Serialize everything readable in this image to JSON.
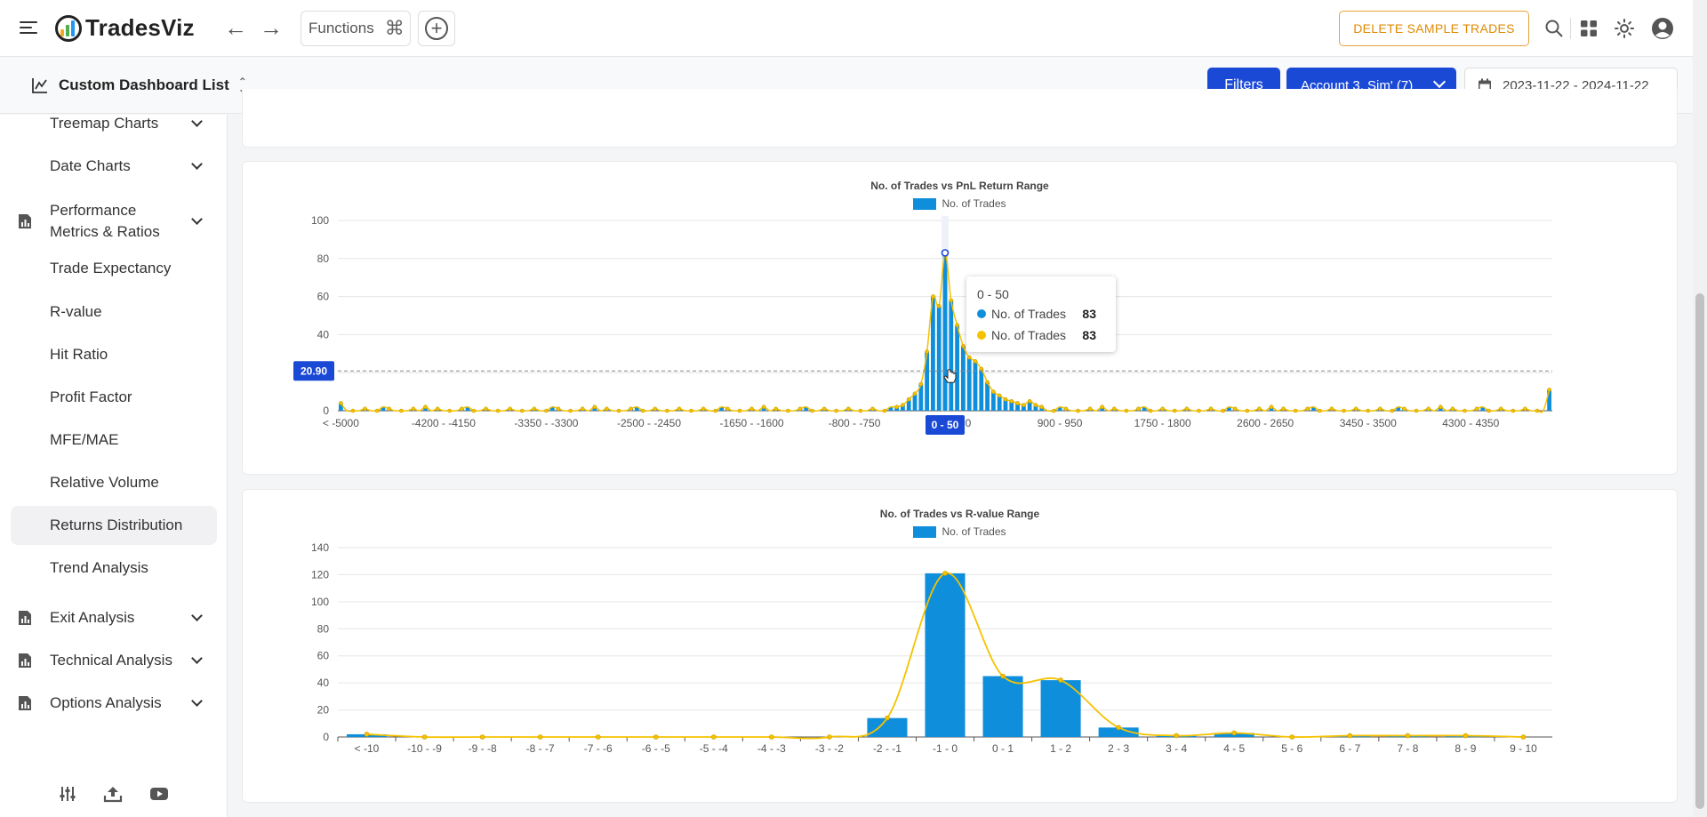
{
  "app": {
    "name": "TradesViz"
  },
  "topbar": {
    "functions_label": "Functions",
    "delete_sample_label": "DELETE SAMPLE TRADES"
  },
  "subbar": {
    "dashboard_title": "Custom Dashboard List",
    "filters_label": "Filters",
    "account_label": "Account 3, Sim' (7)",
    "date_range": "2023-11-22 - 2024-11-22"
  },
  "sidebar": {
    "items": [
      {
        "label": "Treemap Charts",
        "expandable": true,
        "icon": false
      },
      {
        "label": "Date Charts",
        "expandable": true,
        "icon": false
      },
      {
        "label": "Performance Metrics & Ratios",
        "expandable": true,
        "icon": true
      },
      {
        "label": "Trade Expectancy",
        "expandable": false,
        "icon": false
      },
      {
        "label": "R-value",
        "expandable": false,
        "icon": false
      },
      {
        "label": "Hit Ratio",
        "expandable": false,
        "icon": false
      },
      {
        "label": "Profit Factor",
        "expandable": false,
        "icon": false
      },
      {
        "label": "MFE/MAE",
        "expandable": false,
        "icon": false
      },
      {
        "label": "Relative Volume",
        "expandable": false,
        "icon": false
      },
      {
        "label": "Returns Distribution",
        "expandable": false,
        "icon": false,
        "active": true
      },
      {
        "label": "Trend Analysis",
        "expandable": false,
        "icon": false
      },
      {
        "label": "Exit Analysis",
        "expandable": true,
        "icon": true
      },
      {
        "label": "Technical Analysis",
        "expandable": true,
        "icon": true
      },
      {
        "label": "Options Analysis",
        "expandable": true,
        "icon": true
      }
    ]
  },
  "colors": {
    "bar": "#0f8fdb",
    "line": "#f5c200",
    "brand": "#1a49d6",
    "warning": "#e08a00"
  },
  "chart_data": [
    {
      "type": "bar",
      "title": "No. of Trades vs PnL Return Range",
      "legend": "No. of Trades",
      "ylim": [
        0,
        100
      ],
      "yticks": [
        0,
        20,
        40,
        60,
        80,
        100
      ],
      "tick_labels": [
        "< -5000",
        "-4200 - -4150",
        "-3350 - -3300",
        "-2500 - -2450",
        "-1650 - -1600",
        "-800 - -750",
        "0 - 50",
        "900 - 950",
        "1750 - 1800",
        "2600 - 2650",
        "3450 - 3500",
        "4300 - 4350"
      ],
      "tick_hidden_fragment": "0",
      "crosshair_y_label": "20.90",
      "crosshair_x_label": "0 - 50",
      "peak_values": [
        2,
        3,
        6,
        9,
        14,
        31,
        60,
        55,
        83,
        58,
        45,
        34,
        28,
        26,
        22,
        15,
        10,
        8,
        6,
        5,
        4,
        3,
        5,
        3,
        2
      ],
      "tail_right_value": 11,
      "tooltip": {
        "category": "0 - 50",
        "rows": [
          {
            "name": "No. of Trades",
            "value": "83",
            "color": "#0f8fdb"
          },
          {
            "name": "No. of Trades",
            "value": "83",
            "color": "#f5c200"
          }
        ]
      }
    },
    {
      "type": "bar",
      "title": "No. of Trades vs R-value Range",
      "legend": "No. of Trades",
      "ylim": [
        0,
        140
      ],
      "yticks": [
        0,
        20,
        40,
        60,
        80,
        100,
        120,
        140
      ],
      "categories": [
        "< -10",
        "-10 - -9",
        "-9 - -8",
        "-8 - -7",
        "-7 - -6",
        "-6 - -5",
        "-5 - -4",
        "-4 - -3",
        "-3 - -2",
        "-2 - -1",
        "-1 - 0",
        "0 - 1",
        "1 - 2",
        "2 - 3",
        "3 - 4",
        "4 - 5",
        "5 - 6",
        "6 - 7",
        "7 - 8",
        "8 - 9",
        "9 - 10"
      ],
      "values": [
        2,
        0,
        0,
        0,
        0,
        0,
        0,
        0,
        0,
        14,
        121,
        45,
        42,
        7,
        1,
        3,
        0,
        1,
        1,
        1,
        0
      ]
    }
  ]
}
